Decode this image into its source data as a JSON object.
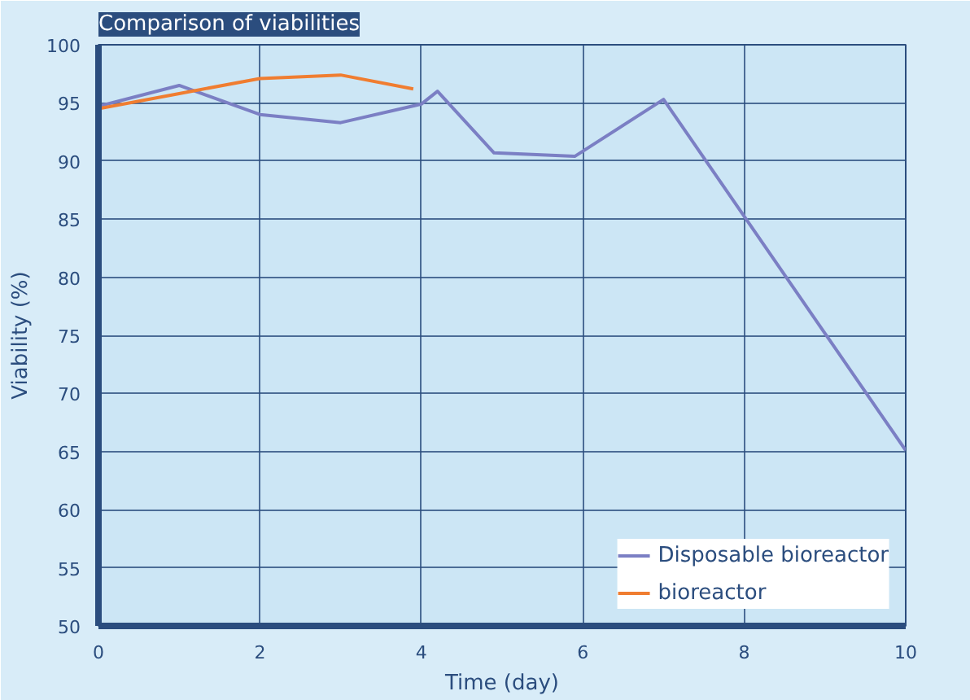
{
  "chart_data": {
    "type": "line",
    "title": "Comparison of viabilities",
    "xlabel": "Time (day)",
    "ylabel": "Viability (%)",
    "xlim": [
      0,
      10
    ],
    "xticks": [
      0,
      2,
      4,
      6,
      8,
      10
    ],
    "ylim": [
      50,
      100
    ],
    "yticks": [
      50,
      55,
      60,
      65,
      70,
      75,
      80,
      85,
      90,
      95,
      100
    ],
    "grid": true,
    "legend": "bottom right",
    "marker": "none",
    "line_style": "solid",
    "series": [
      {
        "name": "Disposable bioreactor",
        "color": "#7b7fc4",
        "x": [
          0,
          1,
          2,
          3,
          4,
          4.2,
          4.9,
          5.9,
          7,
          10
        ],
        "values": [
          94.7,
          96.5,
          94.0,
          93.3,
          94.9,
          96.0,
          90.7,
          90.4,
          95.3,
          65.1
        ]
      },
      {
        "name": "bioreactor",
        "color": "#f07d30",
        "x": [
          0,
          1,
          2,
          3,
          3.9
        ],
        "values": [
          94.5,
          95.8,
          97.1,
          97.4,
          96.2
        ]
      }
    ]
  }
}
